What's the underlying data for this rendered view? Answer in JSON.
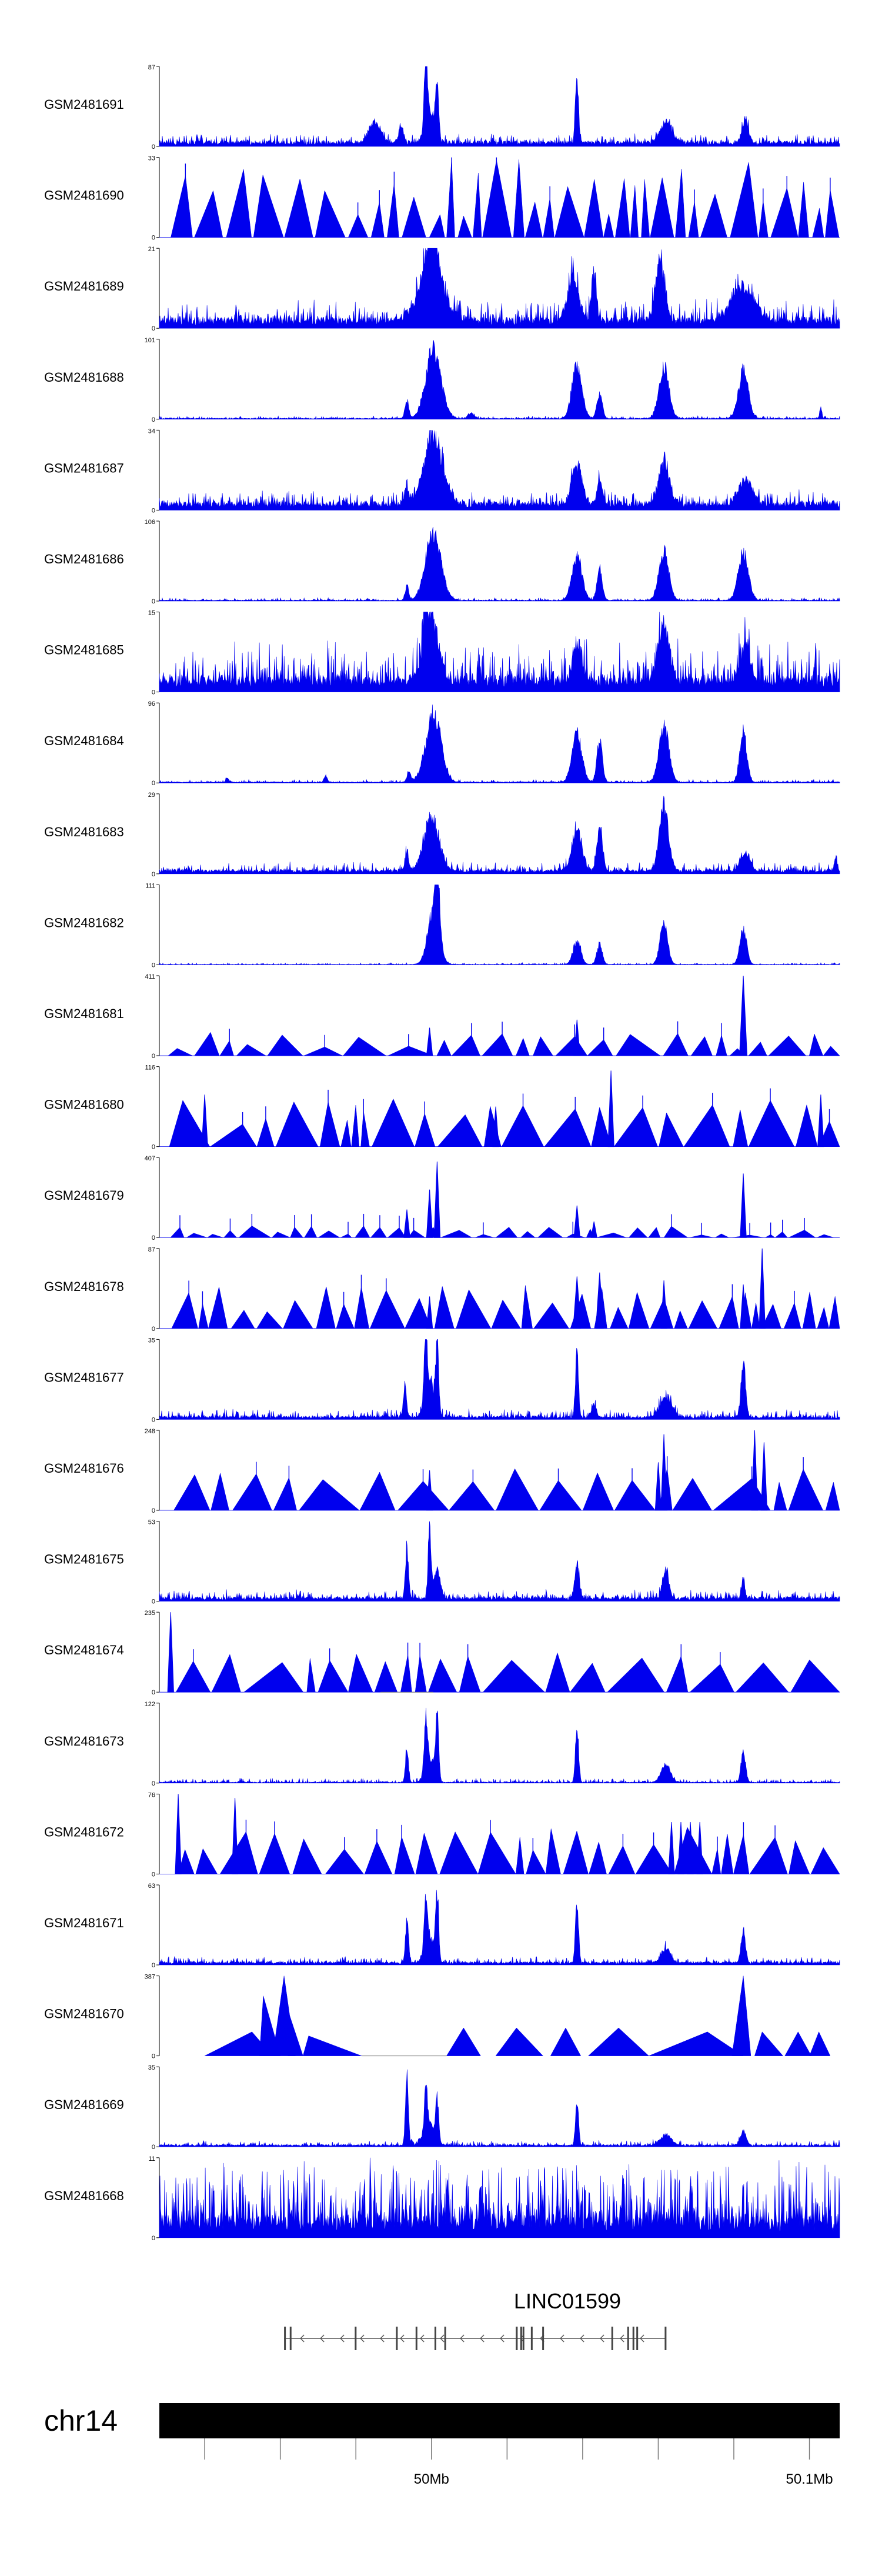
{
  "chart_data": {
    "type": "area",
    "title": "",
    "color": "#0000ee",
    "chromosome": "chr14",
    "region_mb": [
      49.928,
      50.108
    ],
    "x_ticks": [
      {
        "pos": 49.94,
        "label": ""
      },
      {
        "pos": 49.96,
        "label": ""
      },
      {
        "pos": 49.98,
        "label": ""
      },
      {
        "pos": 50.0,
        "label": "50Mb"
      },
      {
        "pos": 50.02,
        "label": ""
      },
      {
        "pos": 50.04,
        "label": ""
      },
      {
        "pos": 50.06,
        "label": ""
      },
      {
        "pos": 50.08,
        "label": ""
      },
      {
        "pos": 50.1,
        "label": "50.1Mb"
      }
    ],
    "gene": {
      "name": "LINC01599",
      "strand": "-",
      "start": 49.961,
      "end": 50.062,
      "exons": [
        [
          49.961,
          49.9612
        ],
        [
          49.9625,
          49.9628
        ],
        [
          49.9797,
          49.9799
        ],
        [
          49.9906,
          49.9908
        ],
        [
          49.9958,
          49.996
        ],
        [
          50.0008,
          50.0011
        ],
        [
          50.0034,
          50.0037
        ],
        [
          50.0223,
          50.0228
        ],
        [
          50.0235,
          50.0238
        ],
        [
          50.0241,
          50.0244
        ],
        [
          50.0263,
          50.0265
        ],
        [
          50.0293,
          50.0295
        ],
        [
          50.0476,
          50.0479
        ],
        [
          50.0518,
          50.052
        ],
        [
          50.0532,
          50.0535
        ],
        [
          50.0542,
          50.0545
        ],
        [
          50.0617,
          50.062
        ]
      ]
    },
    "tracks": [
      {
        "name": "GSM2481691",
        "ymax": "87",
        "ylow": "0",
        "style": "dense",
        "base": 0.05,
        "noise": 0.1,
        "seed": 11,
        "peaks": [
          [
            49.985,
            0.3,
            0.0015
          ],
          [
            49.9985,
            0.95,
            0.0004
          ],
          [
            50.0015,
            0.85,
            0.0004
          ],
          [
            49.9995,
            0.5,
            0.0012
          ],
          [
            50.0385,
            0.95,
            0.0004
          ],
          [
            50.062,
            0.3,
            0.0015
          ],
          [
            50.083,
            0.35,
            0.0008
          ],
          [
            49.992,
            0.25,
            0.0006
          ]
        ]
      },
      {
        "name": "GSM2481690",
        "ymax": "33",
        "ylow": "0",
        "style": "sparse",
        "dens": 0.18,
        "hmin": 0.25,
        "hmax": 1.0,
        "seed": 12,
        "peaks": []
      },
      {
        "name": "GSM2481689",
        "ymax": "21",
        "ylow": "0",
        "style": "dense",
        "base": 0.1,
        "noise": 0.25,
        "seed": 13,
        "peaks": [
          [
            50.0,
            0.75,
            0.002
          ],
          [
            50.0005,
            0.95,
            0.0006
          ],
          [
            50.0375,
            0.6,
            0.0015
          ],
          [
            50.043,
            0.7,
            0.0006
          ],
          [
            50.0605,
            0.9,
            0.0012
          ],
          [
            50.0825,
            0.5,
            0.003
          ],
          [
            50.0,
            0.4,
            0.004
          ]
        ]
      },
      {
        "name": "GSM2481688",
        "ymax": "101",
        "ylow": "0",
        "style": "dense",
        "base": 0.01,
        "noise": 0.03,
        "seed": 14,
        "peaks": [
          [
            50.0005,
            1.0,
            0.002
          ],
          [
            50.0385,
            0.75,
            0.0013
          ],
          [
            50.0445,
            0.35,
            0.0007
          ],
          [
            50.0615,
            0.75,
            0.0013
          ],
          [
            50.0825,
            0.7,
            0.0013
          ],
          [
            49.9935,
            0.25,
            0.0005
          ],
          [
            50.0105,
            0.08,
            0.0008
          ],
          [
            50.103,
            0.15,
            0.0003
          ]
        ]
      },
      {
        "name": "GSM2481687",
        "ymax": "34",
        "ylow": "0",
        "style": "dense",
        "base": 0.08,
        "noise": 0.15,
        "seed": 15,
        "peaks": [
          [
            50.0005,
            1.0,
            0.0025
          ],
          [
            50.0385,
            0.55,
            0.0014
          ],
          [
            50.0445,
            0.35,
            0.0007
          ],
          [
            50.0615,
            0.6,
            0.0014
          ],
          [
            50.083,
            0.35,
            0.0018
          ],
          [
            49.9935,
            0.25,
            0.0005
          ]
        ]
      },
      {
        "name": "GSM2481686",
        "ymax": "106",
        "ylow": "0",
        "style": "dense",
        "base": 0.01,
        "noise": 0.03,
        "seed": 16,
        "peaks": [
          [
            50.0005,
            1.0,
            0.002
          ],
          [
            50.0385,
            0.65,
            0.0013
          ],
          [
            50.0445,
            0.45,
            0.0007
          ],
          [
            50.0615,
            0.7,
            0.0013
          ],
          [
            50.0825,
            0.7,
            0.0013
          ],
          [
            49.9935,
            0.2,
            0.0005
          ]
        ]
      },
      {
        "name": "GSM2481685",
        "ymax": "15",
        "ylow": "0",
        "style": "dense",
        "base": 0.15,
        "noise": 0.45,
        "seed": 17,
        "peaks": [
          [
            50.0,
            0.9,
            0.002
          ],
          [
            49.9985,
            0.9,
            0.0005
          ],
          [
            50.0385,
            0.55,
            0.0012
          ],
          [
            50.0615,
            0.8,
            0.0015
          ],
          [
            50.083,
            0.5,
            0.0015
          ]
        ]
      },
      {
        "name": "GSM2481684",
        "ymax": "96",
        "ylow": "0",
        "style": "dense",
        "base": 0.01,
        "noise": 0.03,
        "seed": 18,
        "peaks": [
          [
            50.0005,
            1.0,
            0.002
          ],
          [
            50.0385,
            0.7,
            0.0013
          ],
          [
            50.0445,
            0.6,
            0.0007
          ],
          [
            50.0615,
            0.8,
            0.0013
          ],
          [
            50.0825,
            0.75,
            0.0009
          ],
          [
            49.994,
            0.15,
            0.0005
          ],
          [
            49.972,
            0.1,
            0.0004
          ],
          [
            49.946,
            0.06,
            0.0004
          ]
        ]
      },
      {
        "name": "GSM2481683",
        "ymax": "29",
        "ylow": "0",
        "style": "dense",
        "base": 0.04,
        "noise": 0.1,
        "seed": 19,
        "peaks": [
          [
            50.0,
            0.75,
            0.002
          ],
          [
            49.9935,
            0.25,
            0.0005
          ],
          [
            50.0385,
            0.6,
            0.0013
          ],
          [
            50.0445,
            0.65,
            0.0007
          ],
          [
            50.0615,
            0.95,
            0.0012
          ],
          [
            50.083,
            0.25,
            0.0013
          ],
          [
            50.107,
            0.2,
            0.0004
          ]
        ]
      },
      {
        "name": "GSM2481682",
        "ymax": "111",
        "ylow": "0",
        "style": "dense",
        "base": 0.005,
        "noise": 0.02,
        "seed": 20,
        "peaks": [
          [
            50.0005,
            0.75,
            0.0015
          ],
          [
            50.0015,
            0.95,
            0.0006
          ],
          [
            50.0385,
            0.35,
            0.001
          ],
          [
            50.0445,
            0.3,
            0.0007
          ],
          [
            50.0615,
            0.6,
            0.001
          ],
          [
            50.0825,
            0.5,
            0.0009
          ]
        ]
      },
      {
        "name": "GSM2481681",
        "ymax": "411",
        "ylow": "0",
        "style": "sparse",
        "dens": 0.07,
        "hmin": 0.08,
        "hmax": 0.3,
        "seed": 21,
        "peaks": [
          [
            50.0385,
            0.45,
            0.0004
          ],
          [
            49.9995,
            0.35,
            0.0004
          ],
          [
            50.0825,
            1.0,
            0.0005
          ]
        ]
      },
      {
        "name": "GSM2481680",
        "ymax": "116",
        "ylow": "0",
        "style": "sparse",
        "dens": 0.08,
        "hmin": 0.25,
        "hmax": 0.6,
        "seed": 22,
        "peaks": [
          [
            50.0475,
            0.95,
            0.0004
          ],
          [
            49.94,
            0.65,
            0.0004
          ],
          [
            50.103,
            0.65,
            0.0004
          ],
          [
            50.017,
            0.5,
            0.0004
          ]
        ]
      },
      {
        "name": "GSM2481679",
        "ymax": "407",
        "ylow": "0",
        "style": "sparse",
        "dens": 0.16,
        "hmin": 0.03,
        "hmax": 0.15,
        "seed": 23,
        "peaks": [
          [
            50.0015,
            0.95,
            0.0004
          ],
          [
            49.9995,
            0.6,
            0.0004
          ],
          [
            49.9935,
            0.35,
            0.0004
          ],
          [
            50.0385,
            0.4,
            0.0004
          ],
          [
            50.0825,
            0.8,
            0.0004
          ],
          [
            50.043,
            0.2,
            0.0004
          ]
        ]
      },
      {
        "name": "GSM2481678",
        "ymax": "87",
        "ylow": "0",
        "style": "sparse",
        "dens": 0.14,
        "hmin": 0.2,
        "hmax": 0.55,
        "seed": 24,
        "peaks": [
          [
            50.0875,
            1.0,
            0.0004
          ],
          [
            50.0385,
            0.65,
            0.0005
          ],
          [
            50.0445,
            0.7,
            0.0005
          ],
          [
            50.0615,
            0.6,
            0.0004
          ],
          [
            50.0825,
            0.55,
            0.0004
          ],
          [
            49.9995,
            0.4,
            0.0004
          ]
        ]
      },
      {
        "name": "GSM2481677",
        "ymax": "35",
        "ylow": "0",
        "style": "dense",
        "base": 0.03,
        "noise": 0.1,
        "seed": 25,
        "peaks": [
          [
            49.9985,
            0.95,
            0.0004
          ],
          [
            50.0015,
            0.95,
            0.0004
          ],
          [
            49.9995,
            0.5,
            0.0012
          ],
          [
            50.0385,
            0.95,
            0.0004
          ],
          [
            50.0825,
            0.8,
            0.0006
          ],
          [
            50.062,
            0.3,
            0.0015
          ],
          [
            49.993,
            0.45,
            0.0004
          ],
          [
            50.043,
            0.2,
            0.0006
          ]
        ]
      },
      {
        "name": "GSM2481676",
        "ymax": "248",
        "ylow": "0",
        "style": "sparse",
        "dens": 0.05,
        "hmin": 0.35,
        "hmax": 0.55,
        "seed": 26,
        "peaks": [
          [
            50.0615,
            0.95,
            0.0004
          ],
          [
            50.0855,
            1.0,
            0.0004
          ],
          [
            50.088,
            0.85,
            0.0004
          ],
          [
            49.9995,
            0.5,
            0.0004
          ],
          [
            50.06,
            0.6,
            0.0004
          ]
        ]
      },
      {
        "name": "GSM2481675",
        "ymax": "53",
        "ylow": "0",
        "style": "dense",
        "base": 0.04,
        "noise": 0.1,
        "seed": 27,
        "peaks": [
          [
            49.9935,
            0.75,
            0.0004
          ],
          [
            49.9995,
            0.95,
            0.0004
          ],
          [
            50.0015,
            0.45,
            0.0008
          ],
          [
            50.0385,
            0.5,
            0.0006
          ],
          [
            50.062,
            0.4,
            0.0008
          ],
          [
            50.0825,
            0.3,
            0.0004
          ]
        ]
      },
      {
        "name": "GSM2481674",
        "ymax": "235",
        "ylow": "0",
        "style": "sparse",
        "dens": 0.03,
        "hmin": 0.35,
        "hmax": 0.5,
        "seed": 28,
        "peaks": [
          [
            49.931,
            1.0,
            0.0004
          ]
        ]
      },
      {
        "name": "GSM2481673",
        "ymax": "122",
        "ylow": "0",
        "style": "dense",
        "base": 0.01,
        "noise": 0.05,
        "seed": 29,
        "peaks": [
          [
            49.9985,
            0.75,
            0.0004
          ],
          [
            50.0015,
            0.95,
            0.0004
          ],
          [
            49.9995,
            0.35,
            0.0012
          ],
          [
            50.0385,
            0.85,
            0.0004
          ],
          [
            49.9935,
            0.45,
            0.0004
          ],
          [
            50.0825,
            0.45,
            0.0006
          ],
          [
            50.062,
            0.25,
            0.0012
          ]
        ]
      },
      {
        "name": "GSM2481672",
        "ymax": "76",
        "ylow": "0",
        "style": "sparse",
        "dens": 0.12,
        "hmin": 0.3,
        "hmax": 0.6,
        "seed": 30,
        "peaks": [
          [
            49.933,
            1.0,
            0.0004
          ],
          [
            49.948,
            0.95,
            0.0004
          ],
          [
            50.0635,
            0.65,
            0.0004
          ],
          [
            50.066,
            0.65,
            0.0004
          ],
          [
            50.0685,
            0.65,
            0.0004
          ],
          [
            50.071,
            0.65,
            0.0004
          ]
        ]
      },
      {
        "name": "GSM2481671",
        "ymax": "63",
        "ylow": "0",
        "style": "dense",
        "base": 0.03,
        "noise": 0.07,
        "seed": 31,
        "peaks": [
          [
            49.9935,
            0.6,
            0.0004
          ],
          [
            49.9985,
            0.75,
            0.0004
          ],
          [
            50.0015,
            0.95,
            0.0004
          ],
          [
            50.0385,
            0.9,
            0.0004
          ],
          [
            50.0825,
            0.4,
            0.0006
          ],
          [
            50.062,
            0.2,
            0.0012
          ],
          [
            49.9995,
            0.4,
            0.0012
          ]
        ]
      },
      {
        "name": "GSM2481670",
        "ymax": "387",
        "ylow": "0",
        "style": "custom",
        "seed": 32,
        "tris": [
          [
            49.94,
            49.9525,
            49.958,
            0.3
          ],
          [
            49.9545,
            49.9555,
            49.96,
            0.75
          ],
          [
            49.958,
            49.961,
            49.964,
            1.0
          ],
          [
            49.962,
            49.9625,
            49.966,
            0.5
          ],
          [
            49.966,
            49.9675,
            49.9815,
            0.25
          ],
          [
            50.004,
            50.0085,
            50.013,
            0.35
          ],
          [
            50.017,
            50.0225,
            50.0295,
            0.35
          ],
          [
            50.0315,
            50.0355,
            50.0395,
            0.35
          ],
          [
            50.0415,
            50.0495,
            50.0575,
            0.35
          ],
          [
            50.0575,
            50.073,
            50.0825,
            0.3
          ],
          [
            50.0795,
            50.0825,
            50.0845,
            1.0
          ],
          [
            50.0855,
            50.0875,
            50.093,
            0.3
          ],
          [
            50.0935,
            50.097,
            50.1005,
            0.3
          ],
          [
            50.1,
            50.1025,
            50.1055,
            0.3
          ]
        ],
        "baseline": [
          [
            49.9815,
            50.004
          ]
        ]
      },
      {
        "name": "GSM2481669",
        "ymax": "35",
        "ylow": "0",
        "style": "dense",
        "base": 0.02,
        "noise": 0.06,
        "seed": 33,
        "peaks": [
          [
            49.9935,
            0.95,
            0.0004
          ],
          [
            49.9985,
            0.6,
            0.0004
          ],
          [
            50.0015,
            0.55,
            0.0004
          ],
          [
            49.9995,
            0.3,
            0.0015
          ],
          [
            50.0385,
            0.65,
            0.0004
          ],
          [
            50.062,
            0.15,
            0.0015
          ],
          [
            50.0825,
            0.2,
            0.0008
          ]
        ]
      },
      {
        "name": "GSM2481668",
        "ymax": "11",
        "ylow": "0",
        "style": "dense",
        "base": 0.2,
        "noise": 0.75,
        "spiky": true,
        "seed": 34,
        "peaks": []
      }
    ]
  }
}
